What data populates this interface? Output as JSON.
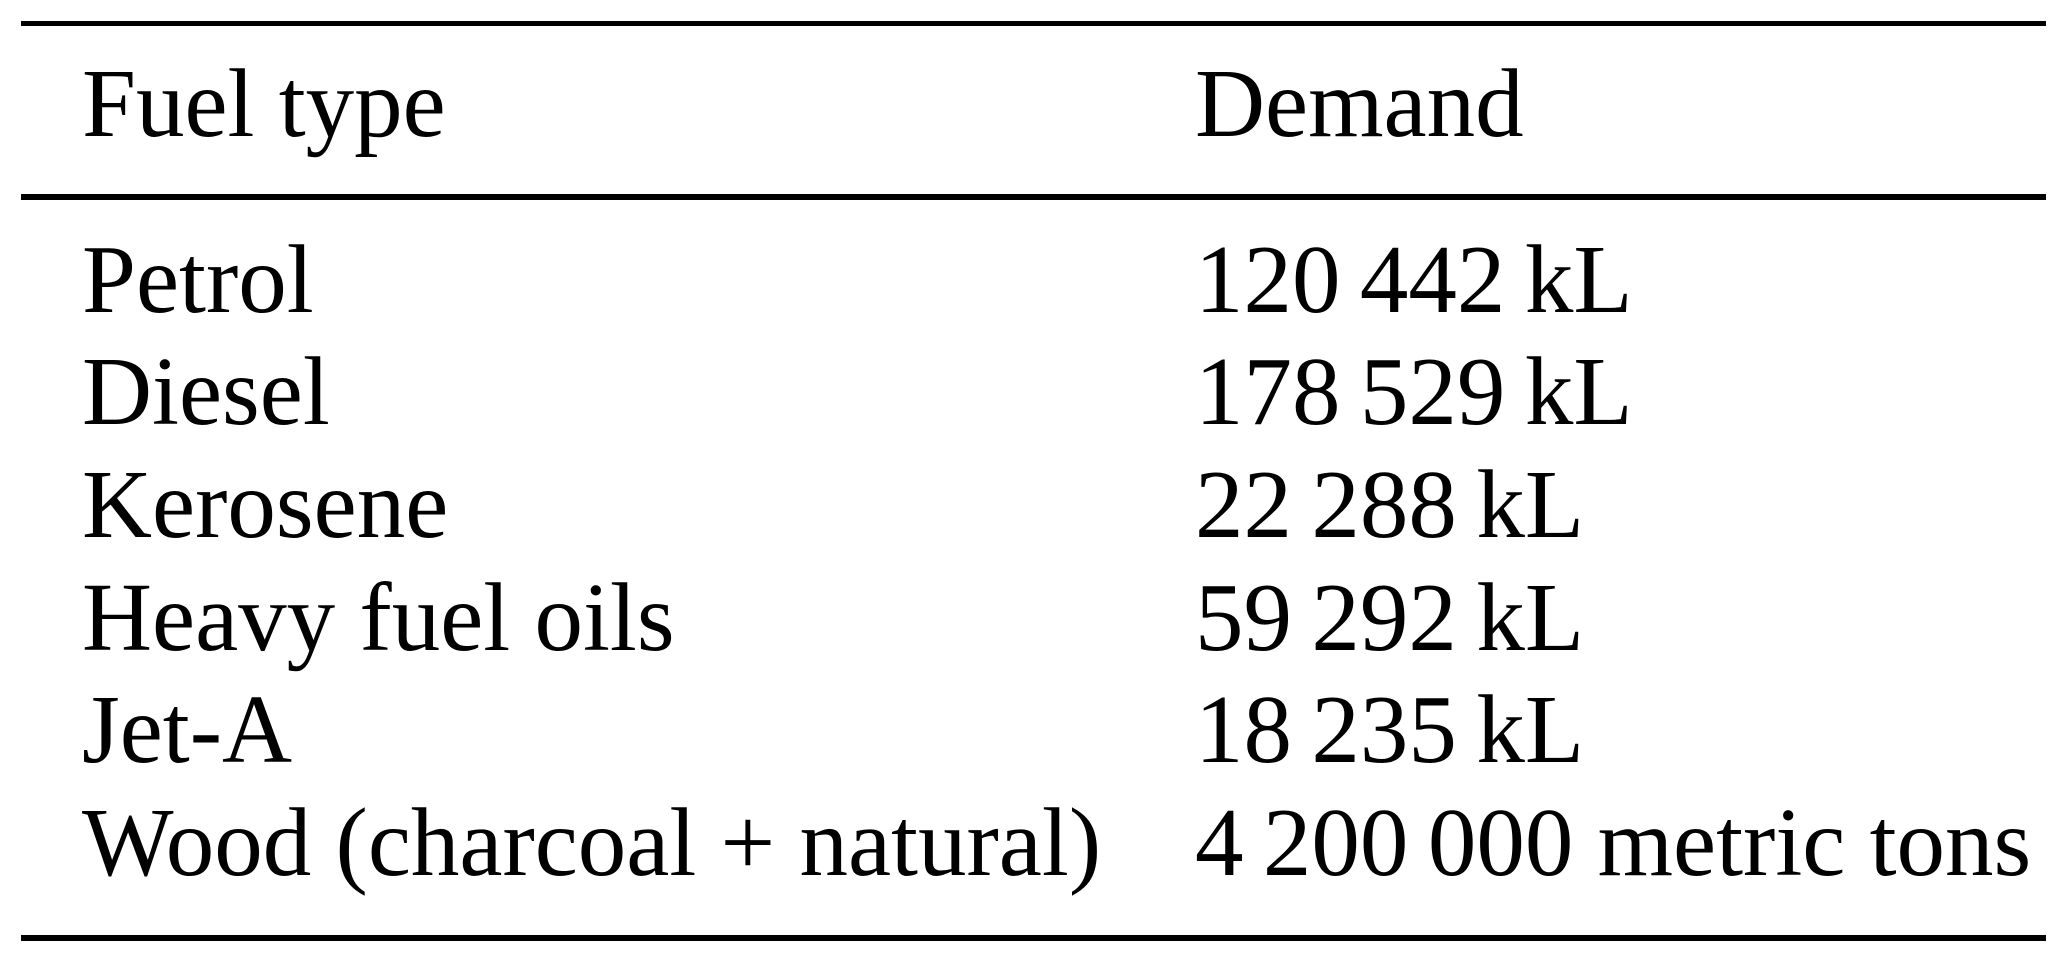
{
  "table": {
    "columns": [
      "Fuel type",
      "Demand"
    ],
    "rows": [
      {
        "fuel": "Petrol",
        "demand_text": "120 442 kL",
        "value": 120442,
        "unit": "kL"
      },
      {
        "fuel": "Diesel",
        "demand_text": "178 529 kL",
        "value": 178529,
        "unit": "kL"
      },
      {
        "fuel": "Kerosene",
        "demand_text": "22 288 kL",
        "value": 22288,
        "unit": "kL"
      },
      {
        "fuel": "Heavy fuel oils",
        "demand_text": "59 292 kL",
        "value": 59292,
        "unit": "kL"
      },
      {
        "fuel": "Jet-A",
        "demand_text": "18 235 kL",
        "value": 18235,
        "unit": "kL"
      },
      {
        "fuel": "Wood (charcoal + natural)",
        "demand_text": "4 200 000 metric tons",
        "value": 4200000,
        "unit": "metric tons"
      }
    ],
    "colors": {
      "text": "#000000",
      "background": "#ffffff",
      "rule": "#000000"
    }
  }
}
